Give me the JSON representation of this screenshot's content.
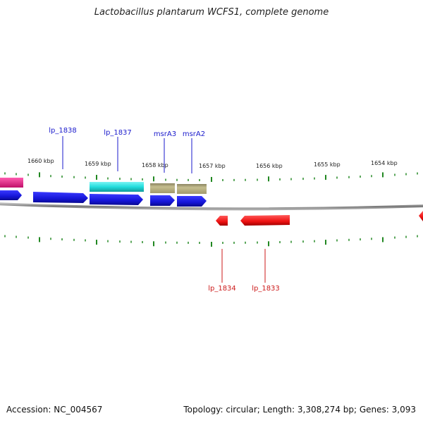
{
  "title": "Lactobacillus plantarum WCFS1, complete genome",
  "footer": {
    "accession": "Accession: NC_004567",
    "summary": "Topology: circular; Length: 3,308,274 bp; Genes: 3,093"
  },
  "scale_labels": [
    "1660 kbp",
    "1659 kbp",
    "1658 kbp",
    "1657 kbp",
    "1656 kbp",
    "1655 kbp",
    "1654 kbp"
  ],
  "gene_labels_top": [
    "lp_1838",
    "lp_1837",
    "msrA3",
    "msrA2"
  ],
  "gene_labels_bottom": [
    "lp_1834",
    "lp_1833"
  ],
  "colors": {
    "top_label": "#1a1acc",
    "bottom_label": "#cc1a1a",
    "blue_gene": "#1a1ae6",
    "cyan_gene": "#22dddd",
    "olive_gene": "#b8b080",
    "magenta_gene": "#e8208a",
    "red_gene": "#ee1111",
    "tick": "#228822",
    "backbone": "#888888"
  }
}
